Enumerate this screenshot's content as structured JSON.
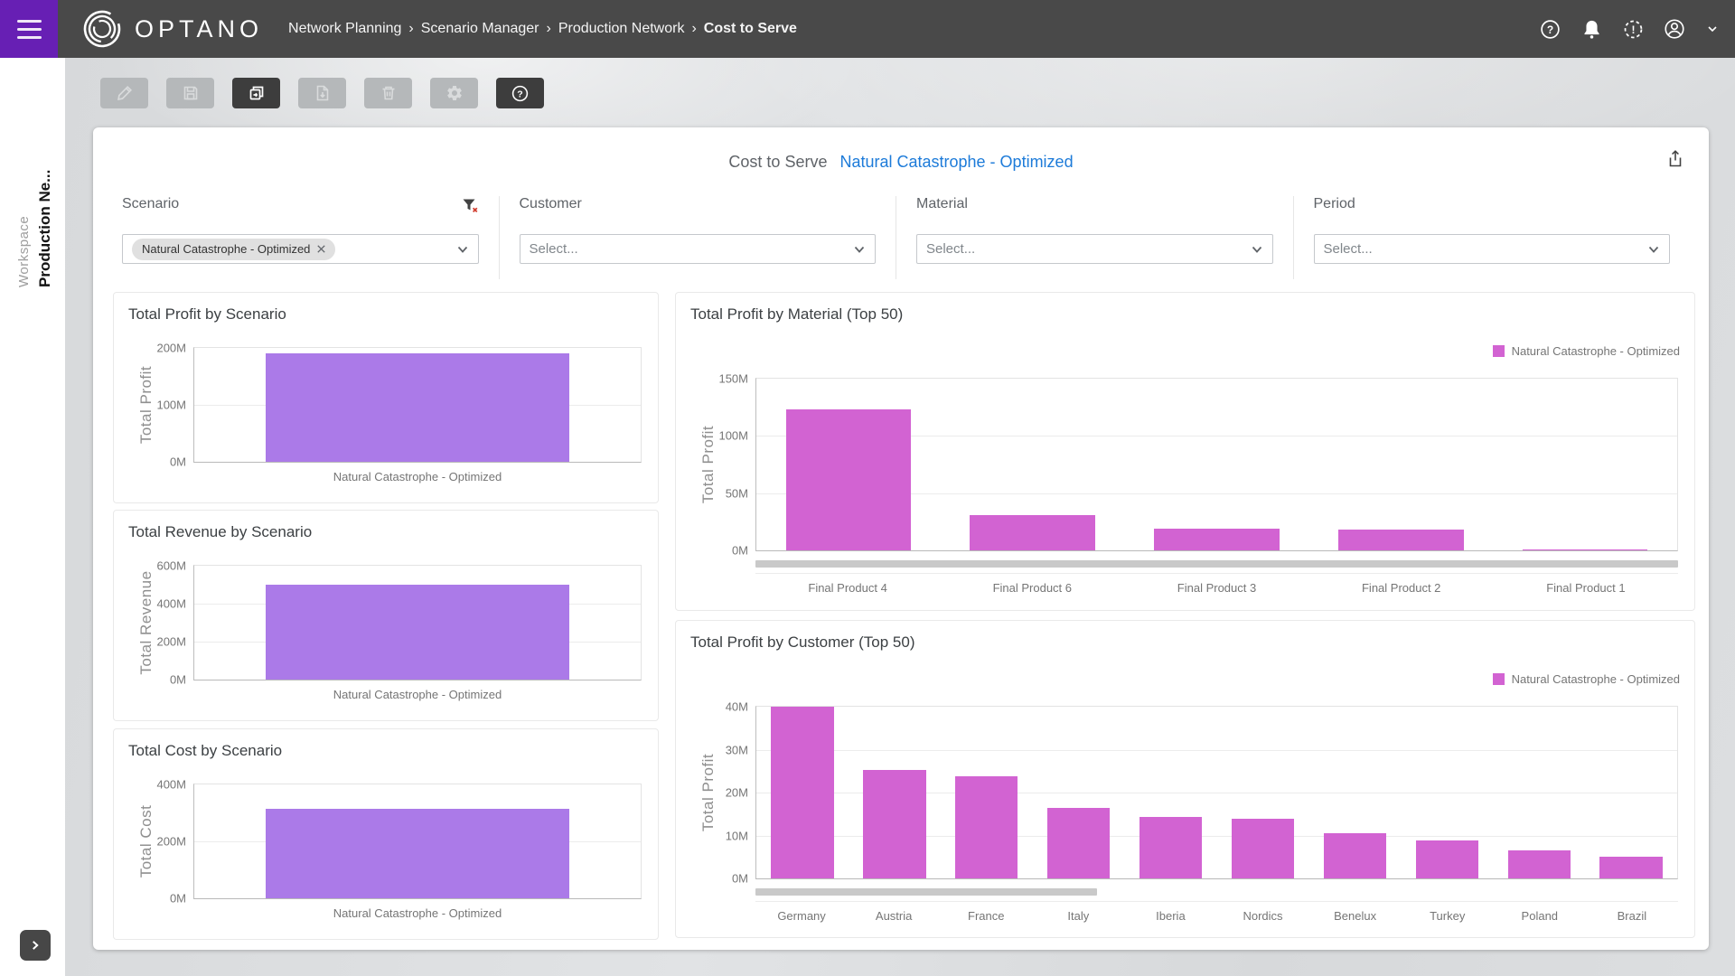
{
  "header": {
    "menu_icon": "hamburger-icon",
    "brand": "OPTANO",
    "breadcrumbs": [
      "Network Planning",
      "Scenario Manager",
      "Production Network",
      "Cost to Serve"
    ],
    "breadcrumb_separator": "›",
    "icons": [
      "help-icon",
      "notifications-icon",
      "pending-status-icon",
      "account-icon",
      "chevron-down-icon"
    ]
  },
  "sidebar": {
    "section_label": "Workspace",
    "workspace_name": "Production Ne...",
    "expand_icon": "chevron-right-icon"
  },
  "toolbar": {
    "buttons": [
      {
        "name": "edit",
        "icon": "pencil-icon",
        "enabled": false
      },
      {
        "name": "save",
        "icon": "save-icon",
        "enabled": false
      },
      {
        "name": "duplicate",
        "icon": "duplicate-icon",
        "enabled": true
      },
      {
        "name": "export",
        "icon": "file-download-icon",
        "enabled": false
      },
      {
        "name": "delete",
        "icon": "trash-icon",
        "enabled": false
      },
      {
        "name": "settings",
        "icon": "gear-icon",
        "enabled": false
      },
      {
        "name": "help",
        "icon": "help-icon",
        "enabled": true
      }
    ]
  },
  "page": {
    "title": "Cost to Serve",
    "scenario_link": "Natural Catastrophe - Optimized",
    "share_icon": "share-icon"
  },
  "filters": [
    {
      "label": "Scenario",
      "chips": [
        "Natural Catastrophe - Optimized"
      ],
      "clear_icon": "filter-remove-icon"
    },
    {
      "label": "Customer",
      "placeholder": "Select..."
    },
    {
      "label": "Material",
      "placeholder": "Select..."
    },
    {
      "label": "Period",
      "placeholder": "Select..."
    }
  ],
  "colors": {
    "menu_purple": "#671fb4",
    "header_gray": "#494949",
    "scenario_bar_purple": "#ab7ae8",
    "series_magenta": "#d263d2",
    "link_blue": "#1d7bd9"
  },
  "chart_data": [
    {
      "type": "bar",
      "title": "Total Profit by Scenario",
      "ylabel": "Total Profit",
      "categories": [
        "Natural Catastrophe - Optimized"
      ],
      "values": [
        190
      ],
      "unit": "M",
      "ylim": [
        0,
        200
      ],
      "yticks": [
        0,
        100,
        200
      ],
      "color": "#ab7ae8",
      "grid": true,
      "legend": null,
      "scrollbar": null
    },
    {
      "type": "bar",
      "title": "Total Revenue by Scenario",
      "ylabel": "Total Revenue",
      "categories": [
        "Natural Catastrophe - Optimized"
      ],
      "values": [
        500
      ],
      "unit": "M",
      "ylim": [
        0,
        600
      ],
      "yticks": [
        0,
        200,
        400,
        600
      ],
      "color": "#ab7ae8",
      "grid": true,
      "legend": null,
      "scrollbar": null
    },
    {
      "type": "bar",
      "title": "Total Cost by Scenario",
      "ylabel": "Total Cost",
      "categories": [
        "Natural Catastrophe - Optimized"
      ],
      "values": [
        313
      ],
      "unit": "M",
      "ylim": [
        0,
        400
      ],
      "yticks": [
        0,
        200,
        400
      ],
      "color": "#ab7ae8",
      "grid": true,
      "legend": null,
      "scrollbar": null
    },
    {
      "type": "bar",
      "title": "Total Profit by Material (Top 50)",
      "ylabel": "Total Profit",
      "categories": [
        "Final Product 4",
        "Final Product 6",
        "Final Product 3",
        "Final Product 2",
        "Final Product 1"
      ],
      "values": [
        123,
        31,
        19,
        18,
        0.4
      ],
      "unit": "M",
      "ylim": [
        0,
        150
      ],
      "yticks": [
        0,
        50,
        100,
        150
      ],
      "color": "#d263d2",
      "grid": true,
      "legend": "Natural Catastrophe - Optimized",
      "scrollbar": 1
    },
    {
      "type": "bar",
      "title": "Total Profit by Customer (Top 50)",
      "ylabel": "Total Profit",
      "categories": [
        "Germany",
        "Austria",
        "France",
        "Italy",
        "Iberia",
        "Nordics",
        "Benelux",
        "Turkey",
        "Poland",
        "Brazil"
      ],
      "values": [
        40,
        25.3,
        23.8,
        16.5,
        14.3,
        14,
        10.5,
        8.8,
        6.5,
        5
      ],
      "unit": "M",
      "ylim": [
        0,
        40
      ],
      "yticks": [
        0,
        10,
        20,
        30,
        40
      ],
      "color": "#d263d2",
      "grid": true,
      "legend": "Natural Catastrophe - Optimized",
      "scrollbar": 0.37
    }
  ]
}
